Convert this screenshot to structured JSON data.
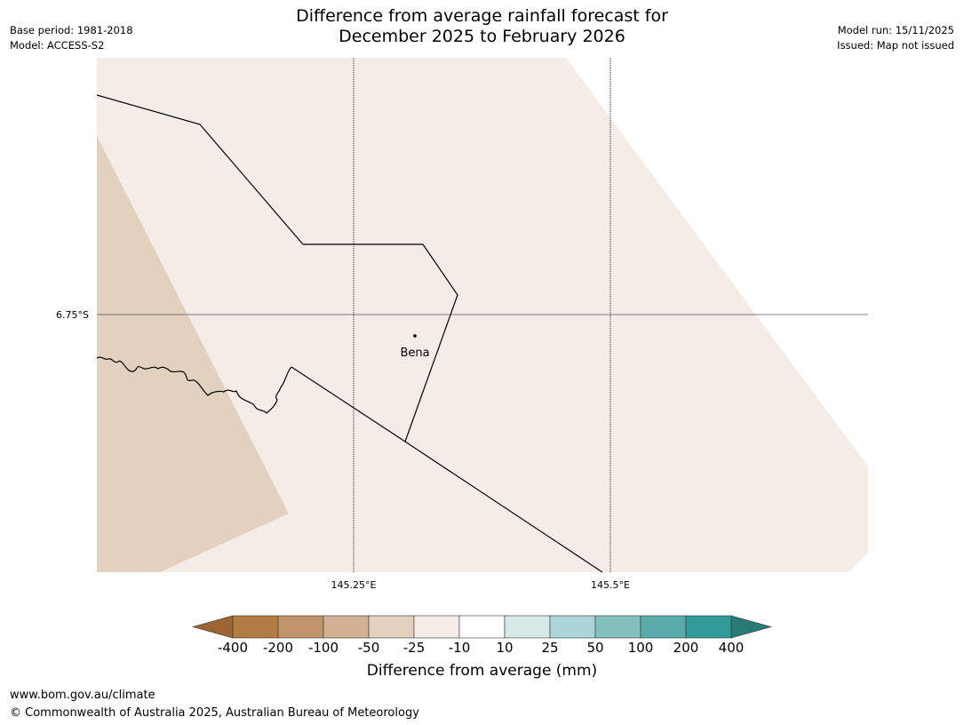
{
  "title": {
    "line1": "Difference from average rainfall forecast for",
    "line2": "December 2025 to February 2026"
  },
  "meta_left": {
    "base_period": "Base period: 1981-2018",
    "model": "Model: ACCESS-S2"
  },
  "meta_right": {
    "model_run": "Model run: 15/11/2025",
    "issued": "Issued: Map not issued"
  },
  "map": {
    "lat_label": "6.75°S",
    "lon_labels": [
      "145.25°E",
      "145.5°E"
    ],
    "place_label": "Bena",
    "fill_colors": {
      "minus25_to_minus10": "#f4ede7",
      "minus50_to_minus25": "#e3d1c0"
    }
  },
  "colorbar": {
    "label": "Difference from average (mm)",
    "ticks": [
      "-400",
      "-200",
      "-100",
      "-50",
      "-25",
      "-10",
      "10",
      "25",
      "50",
      "100",
      "200",
      "400"
    ],
    "colors": [
      "#9c6634",
      "#b27b42",
      "#c2946a",
      "#d3b293",
      "#e3d1c0",
      "#f4ede7",
      "#ffffff",
      "#d6e8e8",
      "#acd6d6",
      "#84c1be",
      "#5aacab",
      "#329a99",
      "#2a7a78"
    ]
  },
  "footer": {
    "url": "www.bom.gov.au/climate",
    "copyright": "© Commonwealth of Australia 2025, Australian Bureau of Meteorology"
  }
}
